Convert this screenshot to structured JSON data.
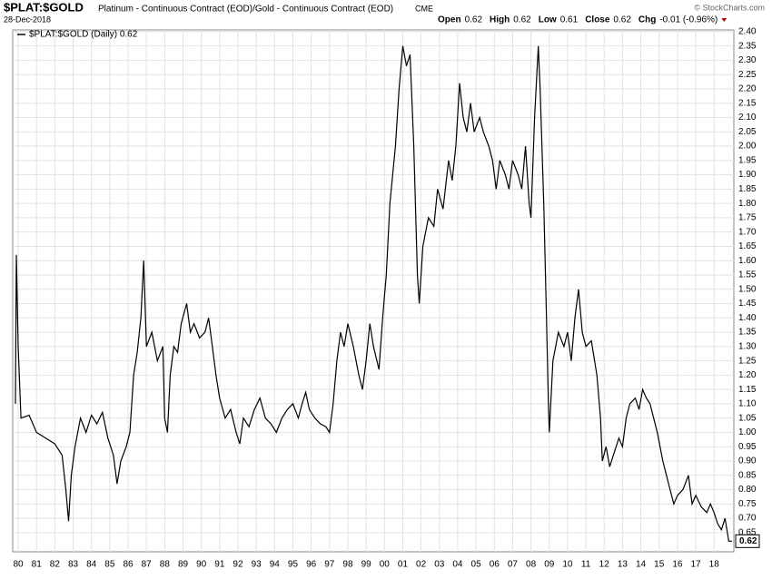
{
  "chart_data": {
    "type": "line",
    "title": "$PLAT:$GOLD",
    "subtitle": "Platinum - Continuous Contract (EOD)/Gold - Continuous Contract (EOD)",
    "exchange": "CME",
    "date": "28-Dec-2018",
    "credit": "© StockCharts.com",
    "quote": [
      {
        "label": "Open",
        "value": 0.62
      },
      {
        "label": "High",
        "value": 0.62
      },
      {
        "label": "Low",
        "value": 0.61
      },
      {
        "label": "Close",
        "value": 0.62
      },
      {
        "label": "Chg",
        "value": "-0.01 (-0.96%)"
      }
    ],
    "last_value": 0.62,
    "grid": true,
    "xlim": [
      1979.7,
      2019.08
    ],
    "ylim": [
      0.583,
      2.406
    ],
    "xticks": [
      {
        "value": 1980,
        "label": "80"
      },
      {
        "value": 1981,
        "label": "81"
      },
      {
        "value": 1982,
        "label": "82"
      },
      {
        "value": 1983,
        "label": "83"
      },
      {
        "value": 1984,
        "label": "84"
      },
      {
        "value": 1985,
        "label": "85"
      },
      {
        "value": 1986,
        "label": "86"
      },
      {
        "value": 1987,
        "label": "87"
      },
      {
        "value": 1988,
        "label": "88"
      },
      {
        "value": 1989,
        "label": "89"
      },
      {
        "value": 1990,
        "label": "90"
      },
      {
        "value": 1991,
        "label": "91"
      },
      {
        "value": 1992,
        "label": "92"
      },
      {
        "value": 1993,
        "label": "93"
      },
      {
        "value": 1994,
        "label": "94"
      },
      {
        "value": 1995,
        "label": "95"
      },
      {
        "value": 1996,
        "label": "96"
      },
      {
        "value": 1997,
        "label": "97"
      },
      {
        "value": 1998,
        "label": "98"
      },
      {
        "value": 1999,
        "label": "99"
      },
      {
        "value": 2000,
        "label": "00"
      },
      {
        "value": 2001,
        "label": "01"
      },
      {
        "value": 2002,
        "label": "02"
      },
      {
        "value": 2003,
        "label": "03"
      },
      {
        "value": 2004,
        "label": "04"
      },
      {
        "value": 2005,
        "label": "05"
      },
      {
        "value": 2006,
        "label": "06"
      },
      {
        "value": 2007,
        "label": "07"
      },
      {
        "value": 2008,
        "label": "08"
      },
      {
        "value": 2009,
        "label": "09"
      },
      {
        "value": 2010,
        "label": "10"
      },
      {
        "value": 2011,
        "label": "11"
      },
      {
        "value": 2012,
        "label": "12"
      },
      {
        "value": 2013,
        "label": "13"
      },
      {
        "value": 2014,
        "label": "14"
      },
      {
        "value": 2015,
        "label": "15"
      },
      {
        "value": 2016,
        "label": "16"
      },
      {
        "value": 2017,
        "label": "17"
      },
      {
        "value": 2018,
        "label": "18"
      }
    ],
    "yticks": [
      0.65,
      {
        "value": 0.7,
        "label": "0.70"
      },
      0.75,
      {
        "value": 0.8,
        "label": "0.80"
      },
      0.85,
      {
        "value": 0.9,
        "label": "0.90"
      },
      0.95,
      {
        "value": 1,
        "label": "1.00"
      },
      1.05,
      {
        "value": 1.1,
        "label": "1.10"
      },
      1.15,
      {
        "value": 1.2,
        "label": "1.20"
      },
      1.25,
      {
        "value": 1.3,
        "label": "1.30"
      },
      1.35,
      {
        "value": 1.4,
        "label": "1.40"
      },
      1.45,
      {
        "value": 1.5,
        "label": "1.50"
      },
      1.55,
      {
        "value": 1.6,
        "label": "1.60"
      },
      1.65,
      {
        "value": 1.7,
        "label": "1.70"
      },
      1.75,
      {
        "value": 1.8,
        "label": "1.80"
      },
      1.85,
      {
        "value": 1.9,
        "label": "1.90"
      },
      1.95,
      {
        "value": 2,
        "label": "2.00"
      },
      2.05,
      {
        "value": 2.1,
        "label": "2.10"
      },
      2.15,
      {
        "value": 2.2,
        "label": "2.20"
      },
      2.25,
      {
        "value": 2.3,
        "label": "2.30"
      },
      2.35,
      {
        "value": 2.4,
        "label": "2.40"
      }
    ],
    "series": [
      {
        "name": "$PLAT:$GOLD (Daily) 0.62",
        "color": "#000000",
        "x": [
          1979.85,
          1979.9,
          1980.0,
          1980.15,
          1980.6,
          1981.0,
          1981.5,
          1982.0,
          1982.4,
          1982.6,
          1982.75,
          1982.9,
          1983.1,
          1983.4,
          1983.7,
          1984.0,
          1984.3,
          1984.6,
          1984.9,
          1985.2,
          1985.4,
          1985.6,
          1985.9,
          1986.1,
          1986.3,
          1986.5,
          1986.7,
          1986.85,
          1987.0,
          1987.3,
          1987.6,
          1987.9,
          1988.0,
          1988.15,
          1988.3,
          1988.5,
          1988.7,
          1988.9,
          1989.2,
          1989.4,
          1989.6,
          1989.9,
          1990.2,
          1990.4,
          1990.6,
          1990.8,
          1991.0,
          1991.3,
          1991.6,
          1991.9,
          1992.1,
          1992.3,
          1992.6,
          1992.9,
          1993.2,
          1993.5,
          1993.8,
          1994.1,
          1994.4,
          1994.7,
          1995.0,
          1995.3,
          1995.5,
          1995.7,
          1995.9,
          1996.2,
          1996.5,
          1996.8,
          1997.0,
          1997.2,
          1997.4,
          1997.6,
          1997.8,
          1998.0,
          1998.3,
          1998.6,
          1998.8,
          1999.0,
          1999.2,
          1999.4,
          1999.7,
          1999.9,
          2000.1,
          2000.3,
          2000.6,
          2000.8,
          2001.0,
          2001.2,
          2001.4,
          2001.6,
          2001.8,
          2001.9,
          2002.1,
          2002.4,
          2002.7,
          2002.9,
          2003.2,
          2003.5,
          2003.7,
          2003.9,
          2004.1,
          2004.3,
          2004.5,
          2004.7,
          2004.9,
          2005.2,
          2005.4,
          2005.7,
          2005.9,
          2006.1,
          2006.3,
          2006.6,
          2006.8,
          2007.0,
          2007.3,
          2007.5,
          2007.7,
          2007.9,
          2008.0,
          2008.2,
          2008.4,
          2008.5,
          2008.7,
          2008.85,
          2008.95,
          2009.0,
          2009.2,
          2009.5,
          2009.8,
          2010.0,
          2010.2,
          2010.4,
          2010.6,
          2010.8,
          2011.0,
          2011.3,
          2011.6,
          2011.8,
          2011.9,
          2012.1,
          2012.3,
          2012.5,
          2012.8,
          2013.0,
          2013.2,
          2013.4,
          2013.7,
          2013.9,
          2014.1,
          2014.3,
          2014.5,
          2014.7,
          2014.9,
          2015.2,
          2015.4,
          2015.6,
          2015.8,
          2016.0,
          2016.3,
          2016.6,
          2016.8,
          2017.0,
          2017.3,
          2017.6,
          2017.8,
          2018.0,
          2018.2,
          2018.4,
          2018.6,
          2018.8,
          2018.98
        ],
        "values": [
          1.1,
          1.62,
          1.3,
          1.05,
          1.06,
          1.0,
          0.98,
          0.96,
          0.92,
          0.8,
          0.69,
          0.85,
          0.95,
          1.05,
          1.0,
          1.06,
          1.03,
          1.07,
          0.98,
          0.92,
          0.82,
          0.9,
          0.95,
          1.0,
          1.2,
          1.28,
          1.4,
          1.6,
          1.3,
          1.35,
          1.25,
          1.3,
          1.05,
          1.0,
          1.2,
          1.3,
          1.28,
          1.38,
          1.45,
          1.35,
          1.38,
          1.33,
          1.35,
          1.4,
          1.3,
          1.2,
          1.12,
          1.05,
          1.08,
          1.0,
          0.96,
          1.05,
          1.02,
          1.08,
          1.12,
          1.05,
          1.03,
          1.0,
          1.05,
          1.08,
          1.1,
          1.05,
          1.1,
          1.14,
          1.08,
          1.05,
          1.03,
          1.02,
          1.0,
          1.1,
          1.25,
          1.35,
          1.3,
          1.38,
          1.3,
          1.2,
          1.15,
          1.25,
          1.38,
          1.3,
          1.22,
          1.4,
          1.55,
          1.8,
          2.0,
          2.2,
          2.35,
          2.28,
          2.32,
          2.0,
          1.55,
          1.45,
          1.65,
          1.75,
          1.72,
          1.85,
          1.78,
          1.95,
          1.88,
          2.0,
          2.22,
          2.1,
          2.05,
          2.15,
          2.05,
          2.1,
          2.05,
          2.0,
          1.95,
          1.85,
          1.95,
          1.9,
          1.85,
          1.95,
          1.9,
          1.85,
          2.0,
          1.8,
          1.75,
          2.1,
          2.35,
          2.2,
          1.8,
          1.4,
          1.1,
          1.0,
          1.25,
          1.35,
          1.3,
          1.35,
          1.25,
          1.4,
          1.5,
          1.35,
          1.3,
          1.32,
          1.2,
          1.05,
          0.9,
          0.95,
          0.88,
          0.92,
          0.98,
          0.95,
          1.05,
          1.1,
          1.12,
          1.08,
          1.15,
          1.12,
          1.1,
          1.05,
          1.0,
          0.9,
          0.85,
          0.8,
          0.75,
          0.78,
          0.8,
          0.85,
          0.75,
          0.78,
          0.74,
          0.72,
          0.75,
          0.72,
          0.68,
          0.66,
          0.7,
          0.62,
          0.62
        ]
      }
    ]
  }
}
